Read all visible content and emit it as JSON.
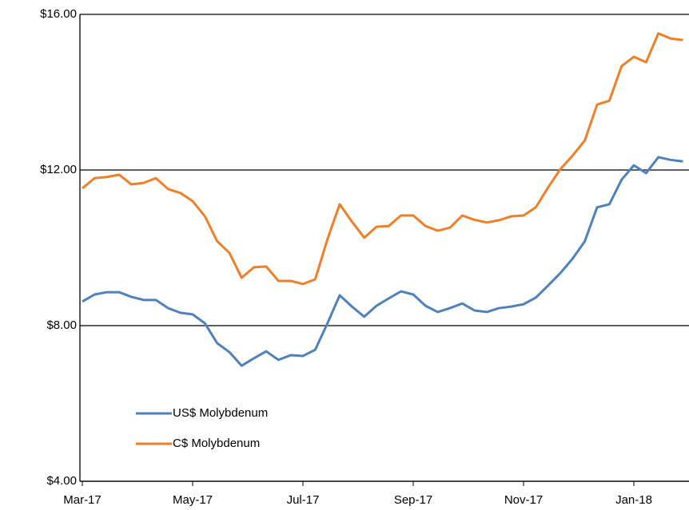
{
  "chart_data": {
    "type": "line",
    "categories": [
      "Mar-17",
      null,
      null,
      null,
      null,
      null,
      null,
      null,
      null,
      "May-17",
      null,
      null,
      null,
      null,
      null,
      null,
      null,
      null,
      "Jul-17",
      null,
      null,
      null,
      null,
      null,
      null,
      null,
      null,
      "Sep-17",
      null,
      null,
      null,
      null,
      null,
      null,
      null,
      null,
      "Nov-17",
      null,
      null,
      null,
      null,
      null,
      null,
      null,
      null,
      "Jan-18",
      null,
      null,
      null,
      null
    ],
    "series": [
      {
        "name": "US$ Molybdenum",
        "color": "#4f81bd",
        "values": [
          8.62,
          8.8,
          8.86,
          8.86,
          8.74,
          8.66,
          8.66,
          8.45,
          8.33,
          8.29,
          8.06,
          7.55,
          7.32,
          6.97,
          7.16,
          7.34,
          7.12,
          7.24,
          7.22,
          7.38,
          8.06,
          8.78,
          8.49,
          8.23,
          8.51,
          8.7,
          8.88,
          8.8,
          8.51,
          8.35,
          8.45,
          8.57,
          8.39,
          8.35,
          8.45,
          8.49,
          8.55,
          8.72,
          9.03,
          9.35,
          9.72,
          10.17,
          11.04,
          11.12,
          11.75,
          12.12,
          11.92,
          12.33,
          12.26,
          12.22
        ]
      },
      {
        "name": "C$ Molybdenum",
        "color": "#f07f2a",
        "values": [
          11.53,
          11.79,
          11.82,
          11.88,
          11.63,
          11.67,
          11.79,
          11.51,
          11.41,
          11.2,
          10.81,
          10.17,
          9.87,
          9.23,
          9.5,
          9.52,
          9.15,
          9.15,
          9.07,
          9.19,
          10.22,
          11.12,
          10.67,
          10.26,
          10.54,
          10.56,
          10.83,
          10.83,
          10.56,
          10.44,
          10.52,
          10.83,
          10.72,
          10.65,
          10.71,
          10.81,
          10.83,
          11.04,
          11.55,
          12.02,
          12.37,
          12.76,
          13.68,
          13.78,
          14.67,
          14.91,
          14.77,
          15.51,
          15.38,
          15.34
        ]
      }
    ],
    "ylim": [
      4,
      16
    ],
    "yticks": [
      {
        "value": 4,
        "label": "$4.00"
      },
      {
        "value": 8,
        "label": "$8.00"
      },
      {
        "value": 12,
        "label": "$12.00"
      },
      {
        "value": 16,
        "label": "$16.00"
      }
    ],
    "grid": true,
    "legend": "lower left"
  }
}
